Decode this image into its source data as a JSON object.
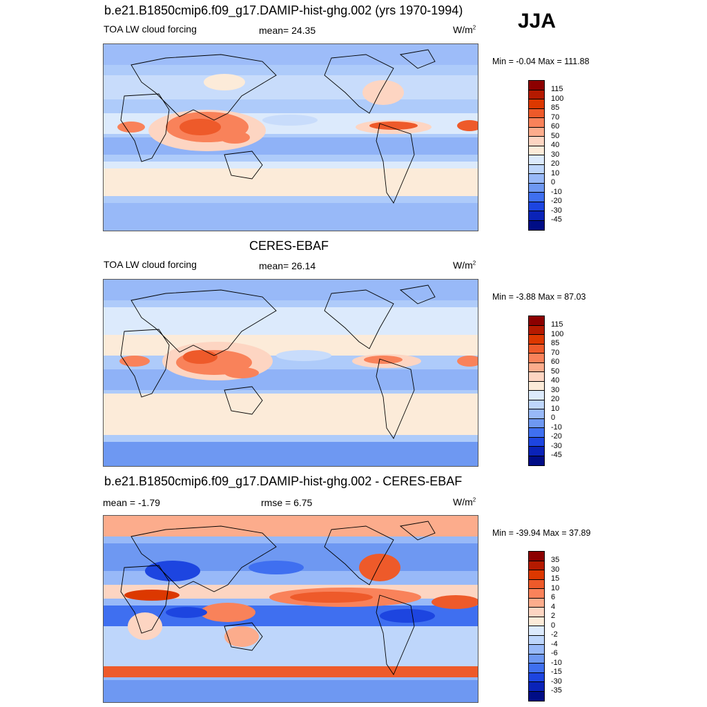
{
  "season": "JJA",
  "panels": [
    {
      "title": "b.e21.B1850cmip6.f09_g17.DAMIP-hist-ghg.002 (yrs 1970-1994)",
      "left_label": "TOA LW cloud forcing",
      "center_label": "mean=  24.35",
      "units": "W/m",
      "units_sup": "2",
      "minmax": "Min =  -0.04 Max = 111.88",
      "colorbar_labels": [
        "115",
        "100",
        "85",
        "70",
        "60",
        "50",
        "40",
        "30",
        "20",
        "10",
        "0",
        "-10",
        "-20",
        "-30",
        "-45"
      ]
    },
    {
      "title": "CERES-EBAF",
      "left_label": "TOA LW cloud forcing",
      "center_label": "mean=  26.14",
      "units": "W/m",
      "units_sup": "2",
      "minmax": "Min =  -3.88 Max =  87.03",
      "colorbar_labels": [
        "115",
        "100",
        "85",
        "70",
        "60",
        "50",
        "40",
        "30",
        "20",
        "10",
        "0",
        "-10",
        "-20",
        "-30",
        "-45"
      ]
    },
    {
      "title": "b.e21.B1850cmip6.f09_g17.DAMIP-hist-ghg.002 - CERES-EBAF",
      "left_label": "mean =  -1.79",
      "center_label": "rmse =   6.75",
      "units": "W/m",
      "units_sup": "2",
      "minmax": "Min = -39.94 Max =  37.89",
      "colorbar_labels": [
        "35",
        "30",
        "15",
        "10",
        "6",
        "4",
        "2",
        "0",
        "-2",
        "-4",
        "-6",
        "-10",
        "-15",
        "-30",
        "-35"
      ]
    }
  ],
  "colorbar_colors": [
    "#8c0000",
    "#b51a00",
    "#dc3800",
    "#ee5a2a",
    "#f9825a",
    "#fcac8c",
    "#fdd5c2",
    "#fcebd9",
    "#dceafc",
    "#bed6fb",
    "#98b9f8",
    "#6e98f2",
    "#3f6ff0",
    "#1d45e0",
    "#0a23b8",
    "#000d86"
  ]
}
